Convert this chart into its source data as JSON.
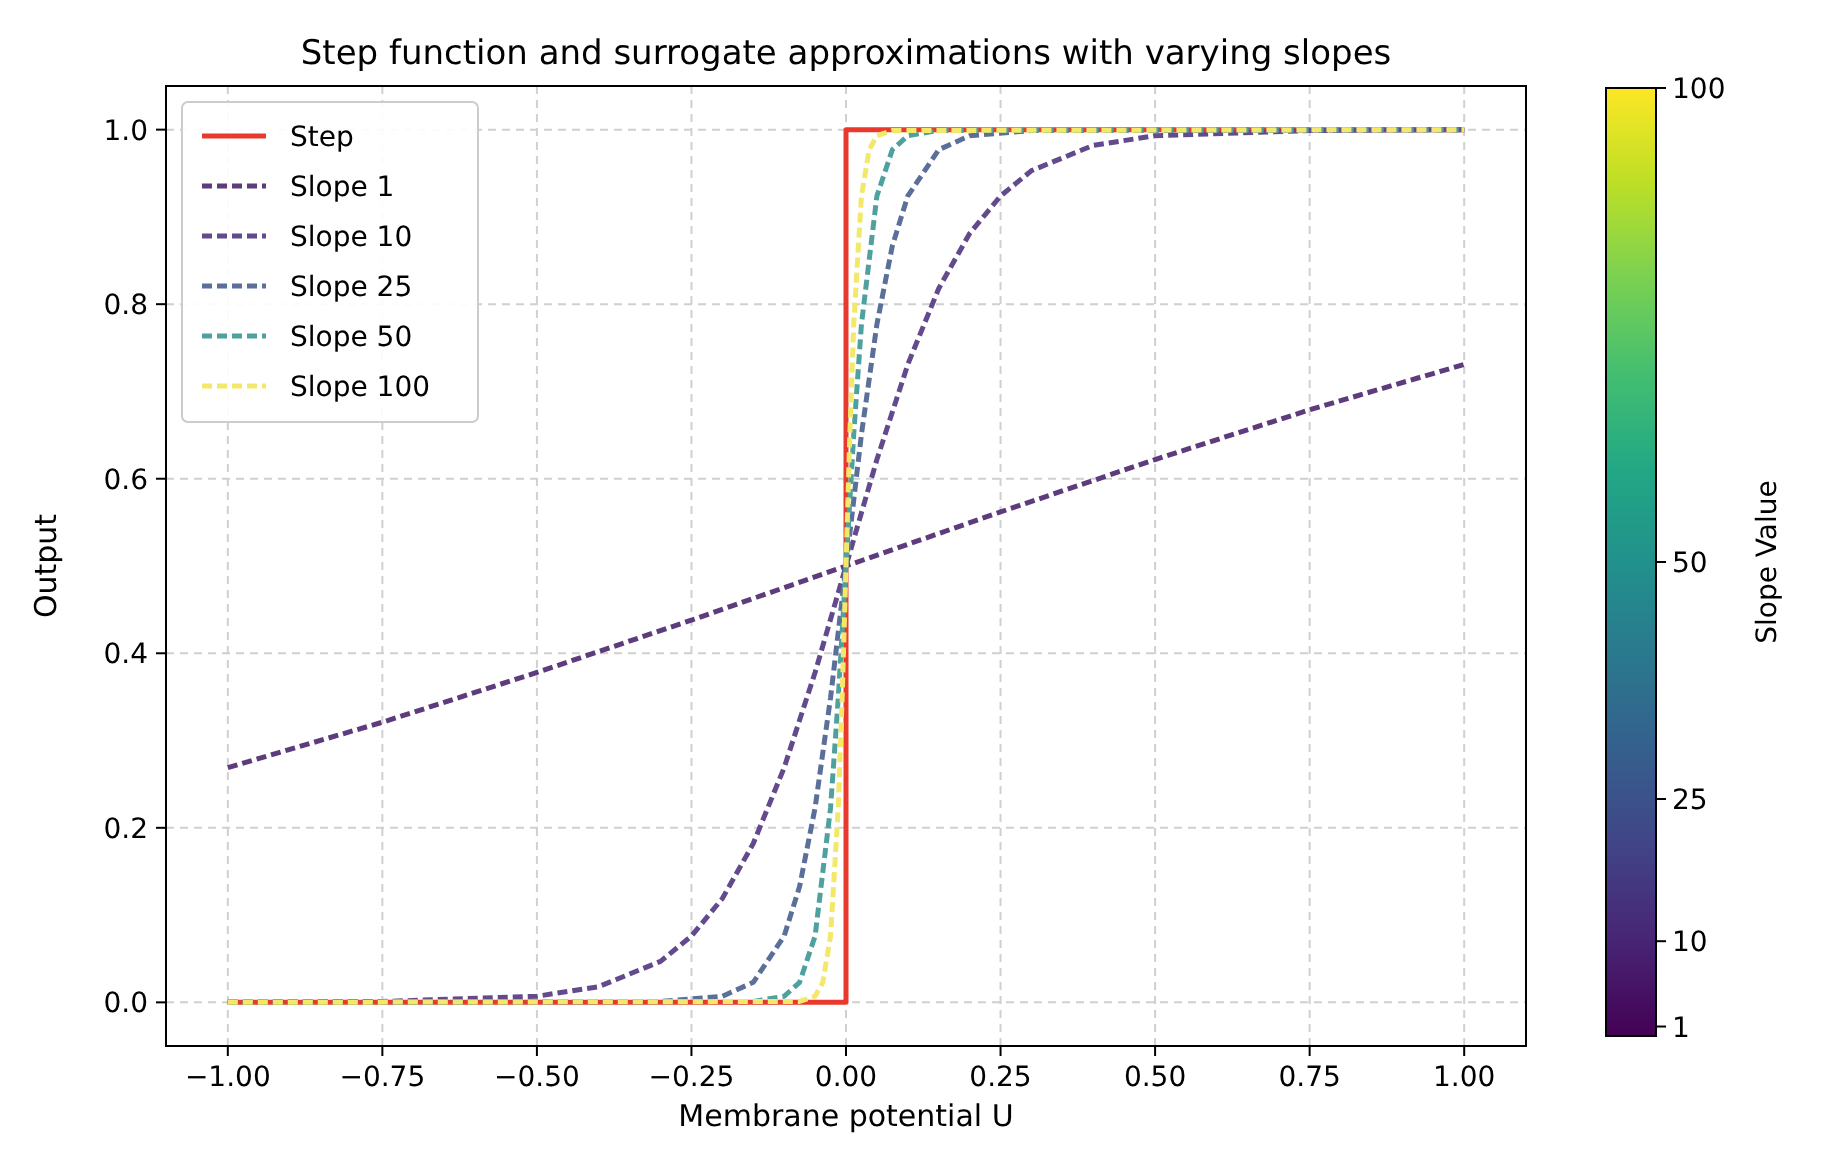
{
  "chart_data": {
    "type": "line",
    "title": "Step function and surrogate approximations with varying slopes",
    "xlabel": "Membrane potential U",
    "ylabel": "Output",
    "clabel": "Slope Value",
    "clim": [
      0,
      100
    ],
    "cticks": [
      1,
      10,
      25,
      50,
      100
    ],
    "xlim": [
      -1.1,
      1.1
    ],
    "xticks": [
      {
        "value": -1,
        "label": "−1.00"
      },
      {
        "value": -0.75,
        "label": "−0.75"
      },
      {
        "value": -0.5,
        "label": "−0.50"
      },
      {
        "value": -0.25,
        "label": "−0.25"
      },
      {
        "value": 0,
        "label": "0.00"
      },
      {
        "value": 0.25,
        "label": "0.25"
      },
      {
        "value": 0.5,
        "label": "0.50"
      },
      {
        "value": 0.75,
        "label": "0.75"
      },
      {
        "value": 1,
        "label": "1.00"
      }
    ],
    "ylim": [
      -0.05,
      1.05
    ],
    "yticks": [
      {
        "value": 0,
        "label": "0.0"
      },
      {
        "value": 0.2,
        "label": "0.2"
      },
      {
        "value": 0.4,
        "label": "0.4"
      },
      {
        "value": 0.6,
        "label": "0.6"
      },
      {
        "value": 0.8,
        "label": "0.8"
      },
      {
        "value": 1,
        "label": "1.0"
      }
    ],
    "grid": true,
    "legend": "top left",
    "marker": "none",
    "series": [
      {
        "name": "Step",
        "color": "#e8392c",
        "line_style": "solid",
        "x": [
          -1,
          0,
          0,
          1
        ],
        "values": [
          0,
          0,
          1,
          1
        ]
      },
      {
        "name": "Slope 1",
        "color": "#5e3b7d",
        "line_style": "dashed",
        "x": [
          -1,
          -0.75,
          -0.5,
          -0.25,
          0,
          0.25,
          0.5,
          0.75,
          1
        ],
        "values": [
          0.269,
          0.321,
          0.378,
          0.438,
          0.5,
          0.562,
          0.622,
          0.679,
          0.731
        ]
      },
      {
        "name": "Slope 10",
        "color": "#634a8c",
        "line_style": "dashed",
        "x": [
          -1,
          -0.75,
          -0.5,
          -0.4,
          -0.3,
          -0.25,
          -0.2,
          -0.15,
          -0.1,
          -0.05,
          0,
          0.05,
          0.1,
          0.15,
          0.2,
          0.25,
          0.3,
          0.4,
          0.5,
          0.75,
          1
        ],
        "values": [
          0,
          0.001,
          0.007,
          0.018,
          0.047,
          0.076,
          0.119,
          0.182,
          0.269,
          0.378,
          0.5,
          0.622,
          0.731,
          0.818,
          0.881,
          0.924,
          0.953,
          0.982,
          0.993,
          0.999,
          1
        ]
      },
      {
        "name": "Slope 25",
        "color": "#5a6f9a",
        "line_style": "dashed",
        "x": [
          -1,
          -0.3,
          -0.2,
          -0.15,
          -0.1,
          -0.075,
          -0.05,
          -0.025,
          0,
          0.025,
          0.05,
          0.075,
          0.1,
          0.15,
          0.2,
          0.3,
          1
        ],
        "values": [
          0,
          0.001,
          0.007,
          0.023,
          0.076,
          0.133,
          0.223,
          0.349,
          0.5,
          0.651,
          0.777,
          0.867,
          0.924,
          0.977,
          0.993,
          0.999,
          1
        ]
      },
      {
        "name": "Slope 50",
        "color": "#4fa1a0",
        "line_style": "dashed",
        "x": [
          -1,
          -0.15,
          -0.1,
          -0.075,
          -0.05,
          -0.025,
          -0.0125,
          0,
          0.0125,
          0.025,
          0.05,
          0.075,
          0.1,
          0.15,
          1
        ],
        "values": [
          0,
          0.001,
          0.007,
          0.023,
          0.076,
          0.223,
          0.349,
          0.5,
          0.651,
          0.777,
          0.924,
          0.977,
          0.993,
          0.999,
          1
        ]
      },
      {
        "name": "Slope 100",
        "color": "#f3e86a",
        "line_style": "dashed",
        "x": [
          -1,
          -0.075,
          -0.05,
          -0.0375,
          -0.025,
          -0.0125,
          -0.00625,
          0,
          0.00625,
          0.0125,
          0.025,
          0.0375,
          0.05,
          0.075,
          1
        ],
        "values": [
          0,
          0.001,
          0.007,
          0.023,
          0.076,
          0.223,
          0.349,
          0.5,
          0.651,
          0.777,
          0.924,
          0.977,
          0.993,
          0.999,
          1
        ]
      }
    ]
  }
}
